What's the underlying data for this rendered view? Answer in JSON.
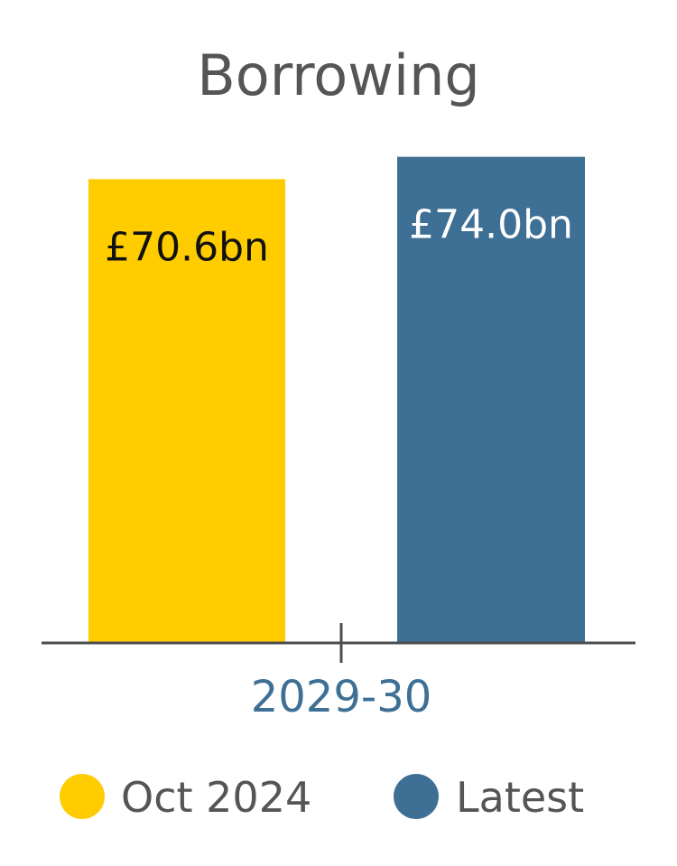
{
  "chart_data": {
    "type": "bar",
    "title": "Borrowing",
    "categories": [
      "2029-30"
    ],
    "series": [
      {
        "name": "Oct 2024",
        "values": [
          70.6
        ],
        "label": "£70.6bn",
        "color": "#FFCC00",
        "label_color": "#111111"
      },
      {
        "name": "Latest",
        "values": [
          74.0
        ],
        "label": "£74.0bn",
        "color": "#3E7095",
        "label_color": "#ffffff"
      }
    ],
    "ylim": [
      0,
      80
    ],
    "grid": false,
    "legend_position": "bottom",
    "colors": {
      "title": "#555555",
      "axis": "#4d4d4d",
      "category_label": "#3E7095",
      "legend_text": "#555555"
    }
  }
}
